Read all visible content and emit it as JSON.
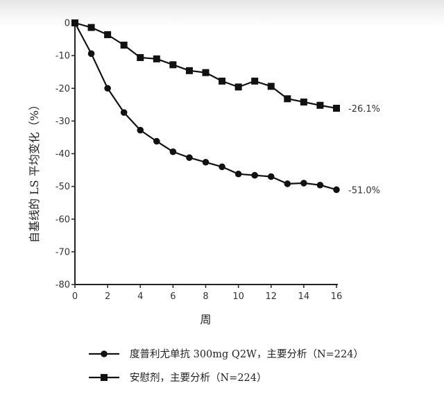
{
  "chart_data": {
    "type": "line",
    "title": "",
    "xlabel": "周",
    "ylabel": "自基线的 LS 平均变化（%）",
    "xlim": [
      0,
      16
    ],
    "ylim": [
      -80,
      0
    ],
    "xticks": [
      0,
      2,
      4,
      6,
      8,
      10,
      12,
      14,
      16
    ],
    "yticks": [
      0,
      -10,
      -20,
      -30,
      -40,
      -50,
      -60,
      -70,
      -80
    ],
    "grid": false,
    "legend_position": "bottom",
    "series": [
      {
        "name": "度普利尤单抗 300mg Q2W，主要分析（N=224）",
        "marker": "circle",
        "color": "#111111",
        "x": [
          0,
          1,
          2,
          3,
          4,
          5,
          6,
          7,
          8,
          9,
          10,
          11,
          12,
          13,
          14,
          15,
          16
        ],
        "values": [
          0,
          -9.4,
          -20.0,
          -27.4,
          -32.8,
          -36.2,
          -39.4,
          -41.2,
          -42.6,
          -44.0,
          -46.2,
          -46.6,
          -47.0,
          -49.2,
          -49.0,
          -49.6,
          -51.0
        ],
        "end_label": "-51.0%"
      },
      {
        "name": "安慰剂，主要分析（N=224）",
        "marker": "square",
        "color": "#111111",
        "x": [
          0,
          1,
          2,
          3,
          4,
          5,
          6,
          7,
          8,
          9,
          10,
          11,
          12,
          13,
          14,
          15,
          16
        ],
        "values": [
          0,
          -1.4,
          -3.6,
          -6.8,
          -10.6,
          -11.0,
          -12.8,
          -14.6,
          -15.2,
          -17.8,
          -19.6,
          -17.8,
          -19.4,
          -23.2,
          -24.2,
          -25.2,
          -26.1
        ],
        "end_label": "-26.1%"
      }
    ]
  }
}
